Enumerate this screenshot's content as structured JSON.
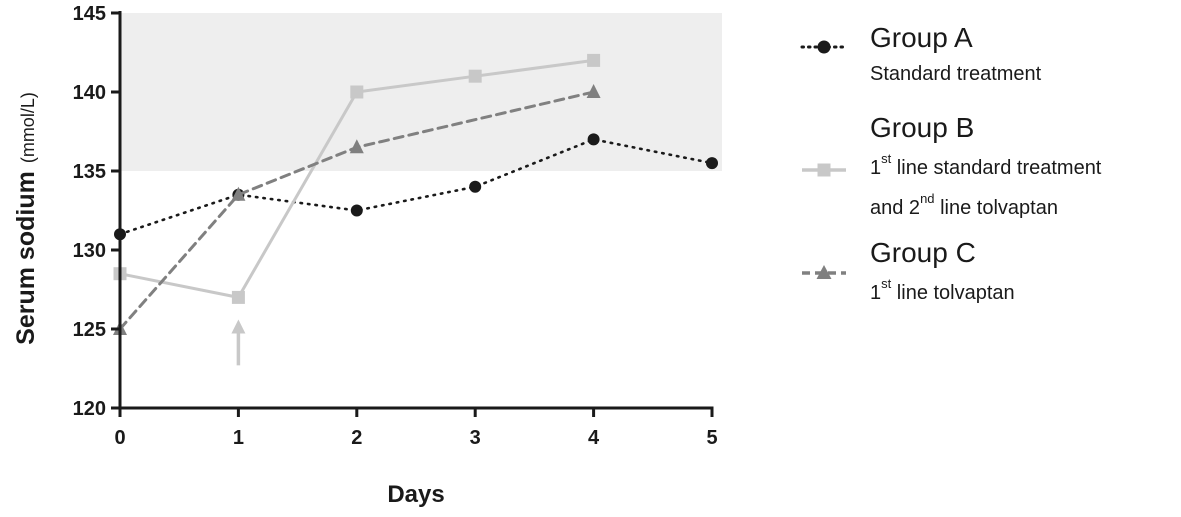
{
  "chart_data": {
    "type": "line",
    "xlabel": "Days",
    "ylabel": "Serum sodium",
    "yunit": "(mmol/L)",
    "x": [
      0,
      1,
      2,
      3,
      4,
      5
    ],
    "xticks": [
      "0",
      "1",
      "2",
      "3",
      "4",
      "5"
    ],
    "yticks": [
      "120",
      "125",
      "130",
      "135",
      "140",
      "145"
    ],
    "xlim": [
      0,
      5
    ],
    "ylim": [
      120,
      145
    ],
    "grid": false,
    "legend_position": "right",
    "shaded_band": {
      "y_from": 135,
      "y_to": 145,
      "color": "#eeeeee"
    },
    "arrow_annotation": {
      "x": 1,
      "y_from": 122.7,
      "y_to": 125.6,
      "color": "#c8c8c8"
    },
    "series": [
      {
        "name": "Group A",
        "description": [
          "Standard treatment"
        ],
        "x": [
          0,
          1,
          2,
          3,
          4,
          5
        ],
        "values": [
          131,
          133.5,
          132.5,
          134,
          137,
          135.5
        ],
        "color": "#1a1a1a",
        "line": "dotted",
        "marker": "circle"
      },
      {
        "name": "Group B",
        "description": [
          {
            "pre": "1",
            "sup": "st",
            "post": " line standard treatment"
          },
          {
            "pre": "and 2",
            "sup": "nd",
            "post": " line tolvaptan"
          }
        ],
        "x": [
          0,
          1,
          2,
          3,
          4
        ],
        "values": [
          128.5,
          127,
          140,
          141,
          142
        ],
        "color": "#c8c8c8",
        "line": "solid",
        "marker": "square"
      },
      {
        "name": "Group C",
        "description": [
          {
            "pre": "1",
            "sup": "st",
            "post": " line tolvaptan"
          }
        ],
        "x": [
          0,
          1,
          2,
          4
        ],
        "values": [
          125,
          133.5,
          136.5,
          140
        ],
        "color": "#808080",
        "line": "dashed",
        "marker": "triangle"
      }
    ]
  }
}
